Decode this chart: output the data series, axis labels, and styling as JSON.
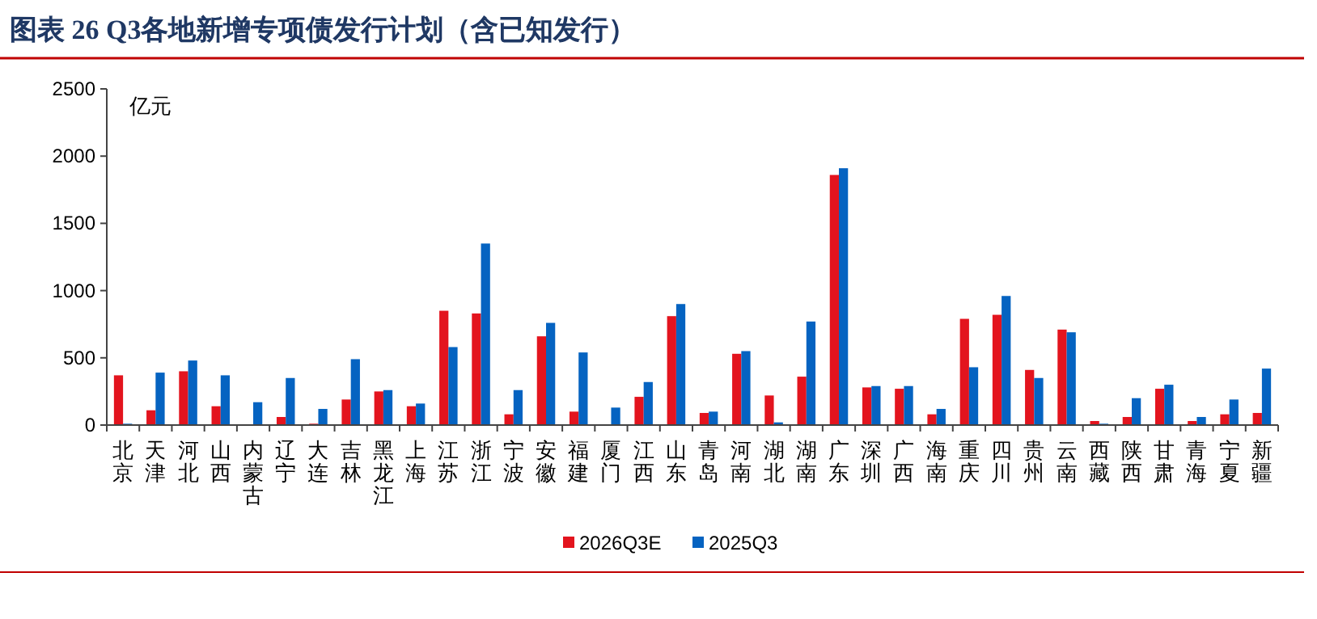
{
  "chart_data": {
    "type": "bar",
    "title": "图表 26 Q3各地新增专项债发行计划（含已知发行）",
    "ylabel": "亿元",
    "categories": [
      "北京",
      "天津",
      "河北",
      "山西",
      "内蒙古",
      "辽宁",
      "大连",
      "吉林",
      "黑龙江",
      "上海",
      "江苏",
      "浙江",
      "宁波",
      "安徽",
      "福建",
      "厦门",
      "江西",
      "山东",
      "青岛",
      "河南",
      "湖北",
      "湖南",
      "广东",
      "深圳",
      "广西",
      "海南",
      "重庆",
      "四川",
      "贵州",
      "云南",
      "西藏",
      "陕西",
      "甘肃",
      "青海",
      "宁夏",
      "新疆"
    ],
    "series": [
      {
        "name": "2026Q3E",
        "color": "#e3141e",
        "values": [
          370,
          110,
          400,
          140,
          0,
          60,
          10,
          190,
          250,
          140,
          850,
          830,
          80,
          660,
          100,
          0,
          210,
          810,
          90,
          530,
          220,
          360,
          1860,
          280,
          270,
          80,
          790,
          820,
          410,
          710,
          30,
          60,
          270,
          30,
          80,
          90
        ]
      },
      {
        "name": "2025Q3",
        "color": "#0563c1",
        "values": [
          10,
          390,
          480,
          370,
          170,
          350,
          120,
          490,
          260,
          160,
          580,
          1350,
          260,
          760,
          540,
          130,
          320,
          900,
          100,
          550,
          20,
          770,
          1910,
          290,
          290,
          120,
          430,
          960,
          350,
          690,
          10,
          200,
          300,
          60,
          190,
          420
        ]
      }
    ],
    "ylim": [
      0,
      2500
    ],
    "yticks": [
      0,
      500,
      1000,
      1500,
      2000,
      2500
    ],
    "grid": false,
    "legend": "bottom"
  }
}
